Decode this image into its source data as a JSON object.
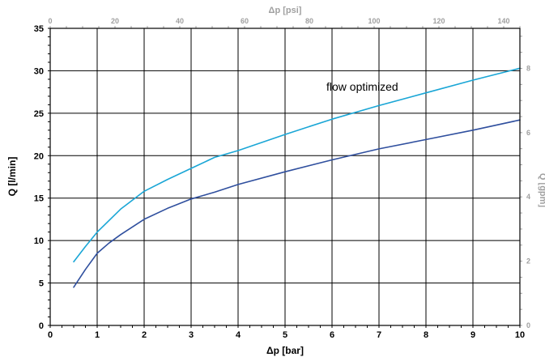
{
  "chart_data": {
    "type": "line",
    "xlabel": "Δp [bar]",
    "ylabel": "Q [l/min]",
    "x2label": "Δp [psi]",
    "y2label": "Q [gpm]",
    "xlim": [
      0,
      10
    ],
    "ylim": [
      0,
      35
    ],
    "x2lim": [
      0,
      145
    ],
    "y2lim": [
      0,
      9.246
    ],
    "grid": true,
    "x_ticks": [
      0,
      1,
      2,
      3,
      4,
      5,
      6,
      7,
      8,
      9,
      10
    ],
    "y_ticks": [
      0,
      5,
      10,
      15,
      20,
      25,
      30,
      35
    ],
    "x2_ticks": [
      0,
      20,
      40,
      60,
      80,
      100,
      120,
      140
    ],
    "y2_ticks": [
      0,
      2,
      4,
      6,
      8
    ],
    "annotation": "flow optimized",
    "colors": {
      "series1": "#1aa6d6",
      "series2": "#2f4f9e",
      "secondary_axis": "#a0a0a0"
    },
    "series": [
      {
        "x": [
          0.5,
          0.75,
          1.0,
          1.5,
          2.0,
          2.5,
          3.0,
          3.5,
          4.0,
          5.0,
          6.0,
          7.0,
          8.0,
          9.0,
          10.0
        ],
        "values": [
          7.5,
          9.3,
          11.0,
          13.7,
          15.8,
          17.2,
          18.5,
          19.8,
          20.6,
          22.5,
          24.3,
          25.9,
          27.4,
          28.9,
          30.3
        ]
      },
      {
        "x": [
          0.5,
          0.75,
          1.0,
          1.25,
          1.5,
          2.0,
          2.5,
          3.0,
          3.5,
          4.0,
          5.0,
          6.0,
          7.0,
          8.0,
          9.0,
          10.0
        ],
        "values": [
          4.5,
          6.6,
          8.5,
          9.7,
          10.7,
          12.5,
          13.8,
          14.9,
          15.7,
          16.6,
          18.1,
          19.5,
          20.8,
          21.9,
          23.0,
          24.2
        ]
      }
    ]
  }
}
